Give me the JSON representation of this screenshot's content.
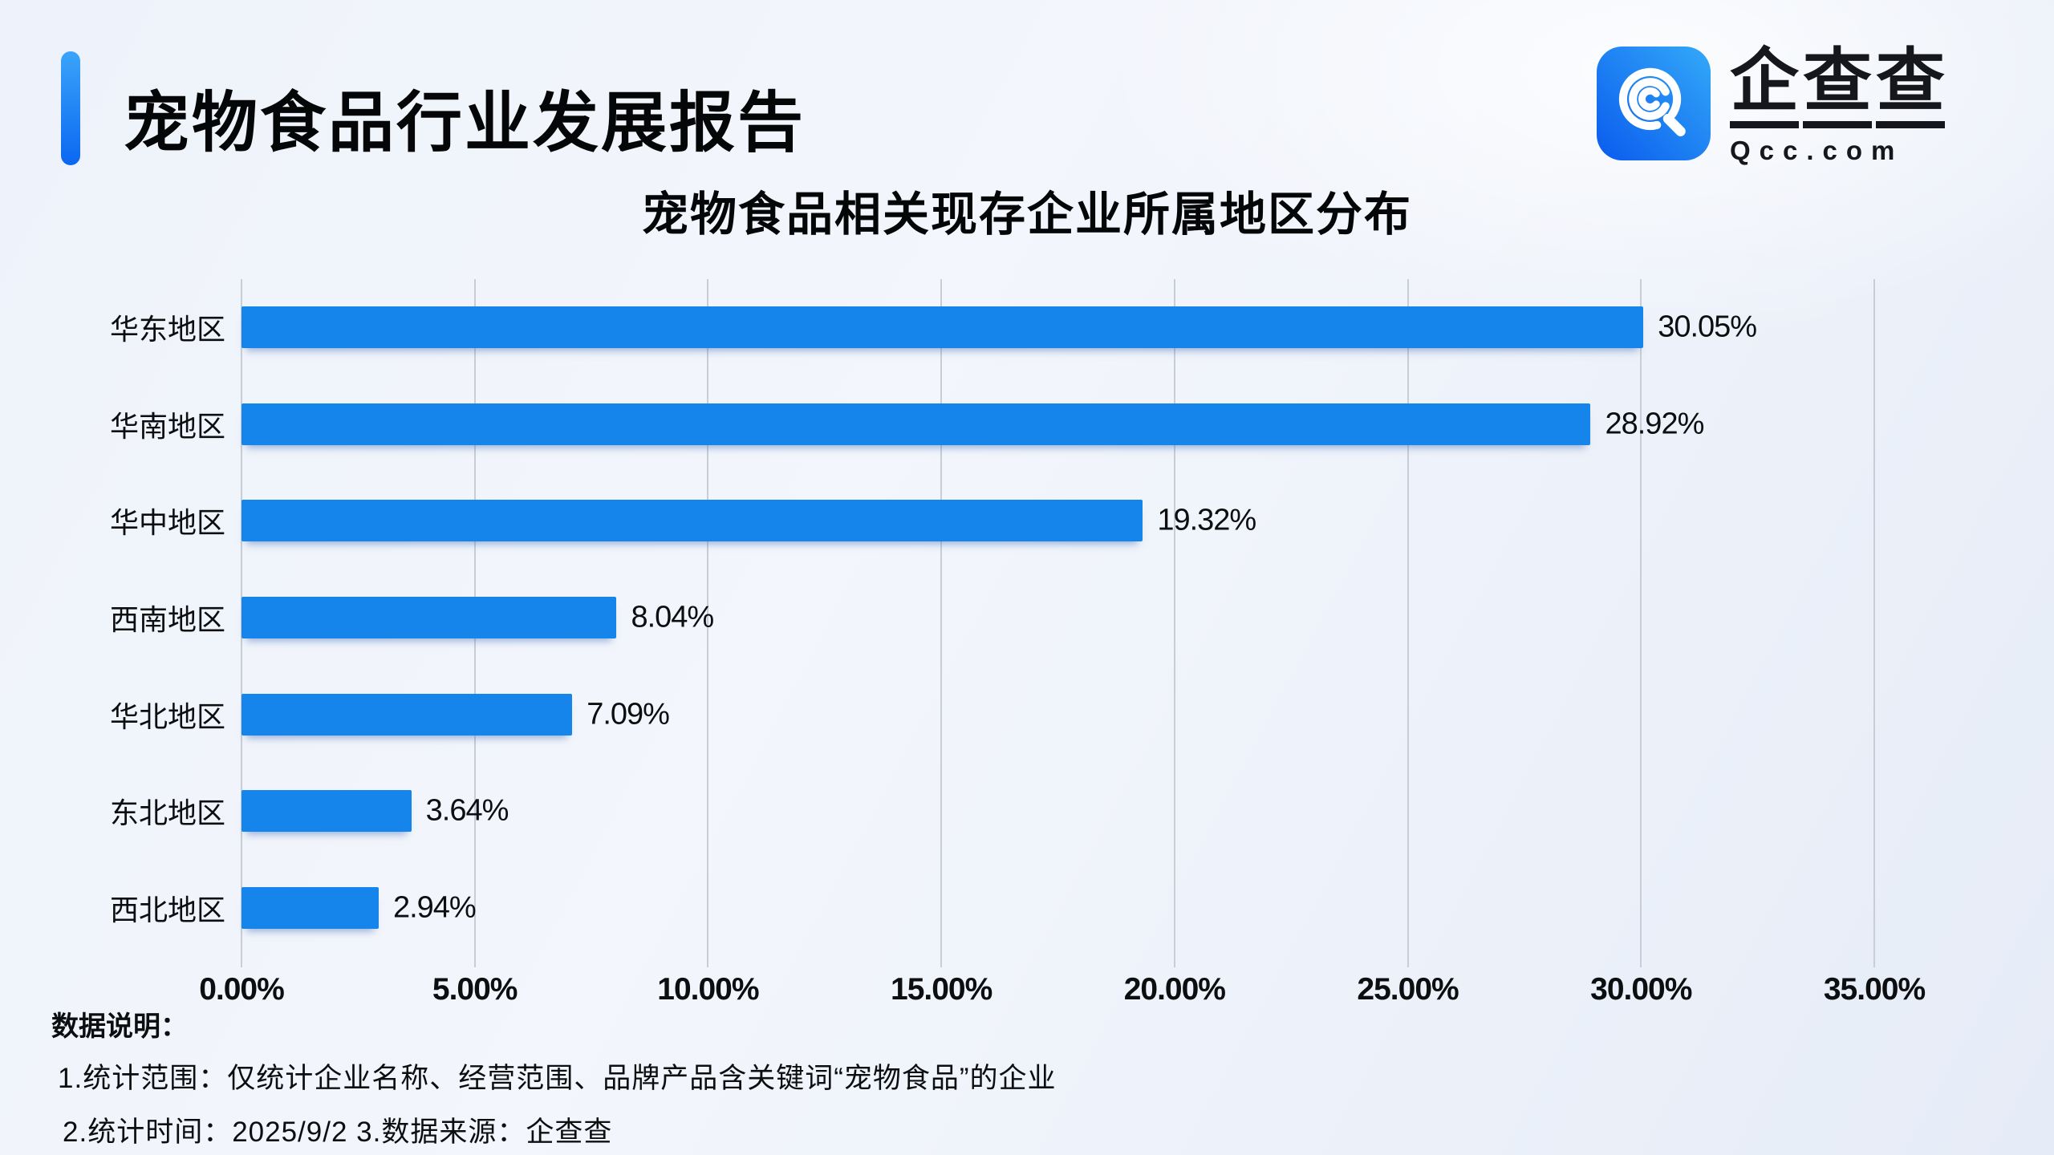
{
  "header": {
    "title": "宠物食品行业发展报告"
  },
  "logo": {
    "brand_chars": [
      "企",
      "查",
      "查"
    ],
    "domain": "Qcc.com",
    "icon": "qcc-magnifier-icon",
    "icon_gradient": [
      "#33a9f8",
      "#0a5bee"
    ]
  },
  "chart_data": {
    "type": "bar",
    "orientation": "horizontal",
    "title": "宠物食品相关现存企业所属地区分布",
    "categories": [
      "华东地区",
      "华南地区",
      "华中地区",
      "西南地区",
      "华北地区",
      "东北地区",
      "西北地区"
    ],
    "values": [
      30.05,
      28.92,
      19.32,
      8.04,
      7.09,
      3.64,
      2.94
    ],
    "value_labels": [
      "30.05%",
      "28.92%",
      "19.32%",
      "8.04%",
      "7.09%",
      "3.64%",
      "2.94%"
    ],
    "x_ticks": [
      "0.00%",
      "5.00%",
      "10.00%",
      "15.00%",
      "20.00%",
      "25.00%",
      "30.00%",
      "35.00%"
    ],
    "xlim": [
      0,
      35
    ],
    "grid": true,
    "legend": "none",
    "bar_color": "#1585EB"
  },
  "footer": {
    "label": "数据说明：",
    "note1": "1.统计范围：仅统计企业名称、经营范围、品牌产品含关键词“宠物食品”的企业",
    "note2": "2.统计时间：2025/9/2  3.数据来源：企查查"
  },
  "colors": {
    "background": "#eef2fa",
    "bar": "#1585EB",
    "gridline": "#c9cdd6",
    "text": "#0d0e10",
    "accent_top": "#3aa4fa",
    "accent_bottom": "#0b67f1"
  }
}
